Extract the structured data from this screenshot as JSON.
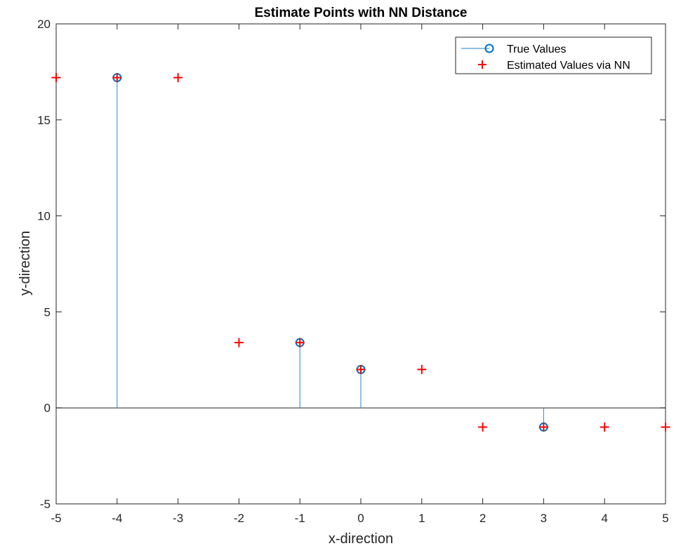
{
  "chart_data": {
    "type": "scatter",
    "title": "Estimate Points with NN Distance",
    "xlabel": "x-direction",
    "ylabel": "y-direction",
    "xlim": [
      -5,
      5
    ],
    "ylim": [
      -5,
      20
    ],
    "xticks": [
      -5,
      -4,
      -3,
      -2,
      -1,
      0,
      1,
      2,
      3,
      4,
      5
    ],
    "yticks": [
      -5,
      0,
      5,
      10,
      15,
      20
    ],
    "grid": false,
    "legend_position": "top-right",
    "series": [
      {
        "name": "True Values",
        "style": "stem",
        "marker": "circle",
        "color": "#0072BD",
        "x": [
          -4,
          -1,
          0,
          3
        ],
        "y": [
          17.2,
          3.4,
          2.0,
          -1.0
        ]
      },
      {
        "name": "Estimated Values via NN",
        "style": "markers",
        "marker": "plus",
        "color": "#FF0000",
        "x": [
          -5,
          -4,
          -3,
          -2,
          -1,
          0,
          1,
          2,
          3,
          4,
          5
        ],
        "y": [
          17.2,
          17.2,
          17.2,
          3.4,
          3.4,
          2.0,
          2.0,
          -1.0,
          -1.0,
          -1.0,
          -1.0
        ]
      }
    ]
  }
}
